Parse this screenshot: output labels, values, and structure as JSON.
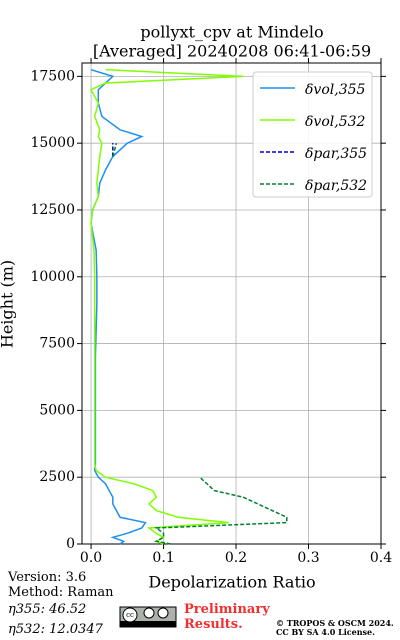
{
  "chart_data": {
    "type": "line",
    "title": "pollyxt_cpv at Mindelo",
    "subtitle": "[Averaged] 20240208 06:41-06:59",
    "x_label": "Depolarization Ratio",
    "y_label": "Height (m)",
    "y": [
      0,
      100,
      250,
      400,
      600,
      800,
      1000,
      1250,
      1500,
      1750,
      2000,
      2250,
      2500,
      2750,
      3000,
      4000,
      5000,
      6000,
      7000,
      8000,
      9000,
      10000,
      11000,
      12000,
      12500,
      13000,
      13500,
      14000,
      14500,
      15000,
      15250,
      15500,
      16000,
      16500,
      17000,
      17250,
      17500,
      17750
    ],
    "series": [
      {
        "name": "δvol,355",
        "color": "#1f8ff0",
        "dash": false,
        "values": [
          0.04,
          0.045,
          0.03,
          0.05,
          0.07,
          0.075,
          0.04,
          0.035,
          0.03,
          0.03,
          0.025,
          0.02,
          0.01,
          0.005,
          0.006,
          0.006,
          0.006,
          0.006,
          0.006,
          0.007,
          0.008,
          0.008,
          0.007,
          0.0,
          0.002,
          0.01,
          0.012,
          0.02,
          0.03,
          0.05,
          0.07,
          0.04,
          0.015,
          0.01,
          0.01,
          0.02,
          0.03,
          0.0
        ]
      },
      {
        "name": "δvol,532",
        "color": "#80ff00",
        "dash": false,
        "values": [
          0.1,
          0.09,
          0.1,
          0.09,
          0.08,
          0.19,
          0.12,
          0.09,
          0.08,
          0.09,
          0.085,
          0.06,
          0.02,
          0.007,
          0.005,
          0.005,
          0.005,
          0.005,
          0.005,
          0.005,
          0.005,
          0.005,
          0.004,
          0.0,
          0.002,
          0.01,
          0.008,
          0.01,
          0.012,
          0.015,
          0.01,
          0.012,
          0.005,
          0.01,
          0.0,
          0.02,
          0.21,
          0.02
        ]
      },
      {
        "name": "δpar,355",
        "color": "#0000cc",
        "dash": true,
        "values": [
          null,
          null,
          null,
          null,
          null,
          null,
          null,
          null,
          null,
          null,
          null,
          null,
          null,
          null,
          null,
          null,
          null,
          null,
          null,
          null,
          null,
          null,
          null,
          null,
          null,
          null,
          null,
          null,
          0.03,
          0.03,
          null,
          null,
          null,
          null,
          null,
          null,
          null,
          null
        ]
      },
      {
        "name": "δpar,532",
        "color": "#008030",
        "dash": true,
        "values": [
          0.11,
          0.09,
          0.1,
          0.1,
          0.09,
          0.27,
          0.27,
          0.25,
          0.23,
          0.21,
          0.17,
          0.16,
          0.15,
          null,
          null,
          null,
          null,
          null,
          null,
          null,
          null,
          null,
          null,
          null,
          null,
          null,
          null,
          null,
          0.03,
          0.035,
          null,
          null,
          null,
          null,
          null,
          null,
          null,
          null
        ]
      }
    ],
    "xlim": [
      -0.0125,
      0.4
    ],
    "xticks": [
      {
        "value": 0,
        "label": "0.0"
      },
      0.1,
      0.2,
      0.3,
      0.4
    ],
    "ylim": [
      0,
      18000
    ],
    "yticks": [
      0,
      2500,
      5000,
      7500,
      10000,
      12500,
      15000,
      17500
    ],
    "grid": true,
    "legend": "upper right"
  },
  "footer": {
    "version": "Version: 3.6",
    "method": "Method: Raman",
    "eta355": "η355:  46.52",
    "eta532": "η532: 12.0347",
    "preliminary": "Preliminary Results.",
    "copyright": "© TROPOS & OSCM 2024.",
    "license": "CC BY SA 4.0 License."
  }
}
